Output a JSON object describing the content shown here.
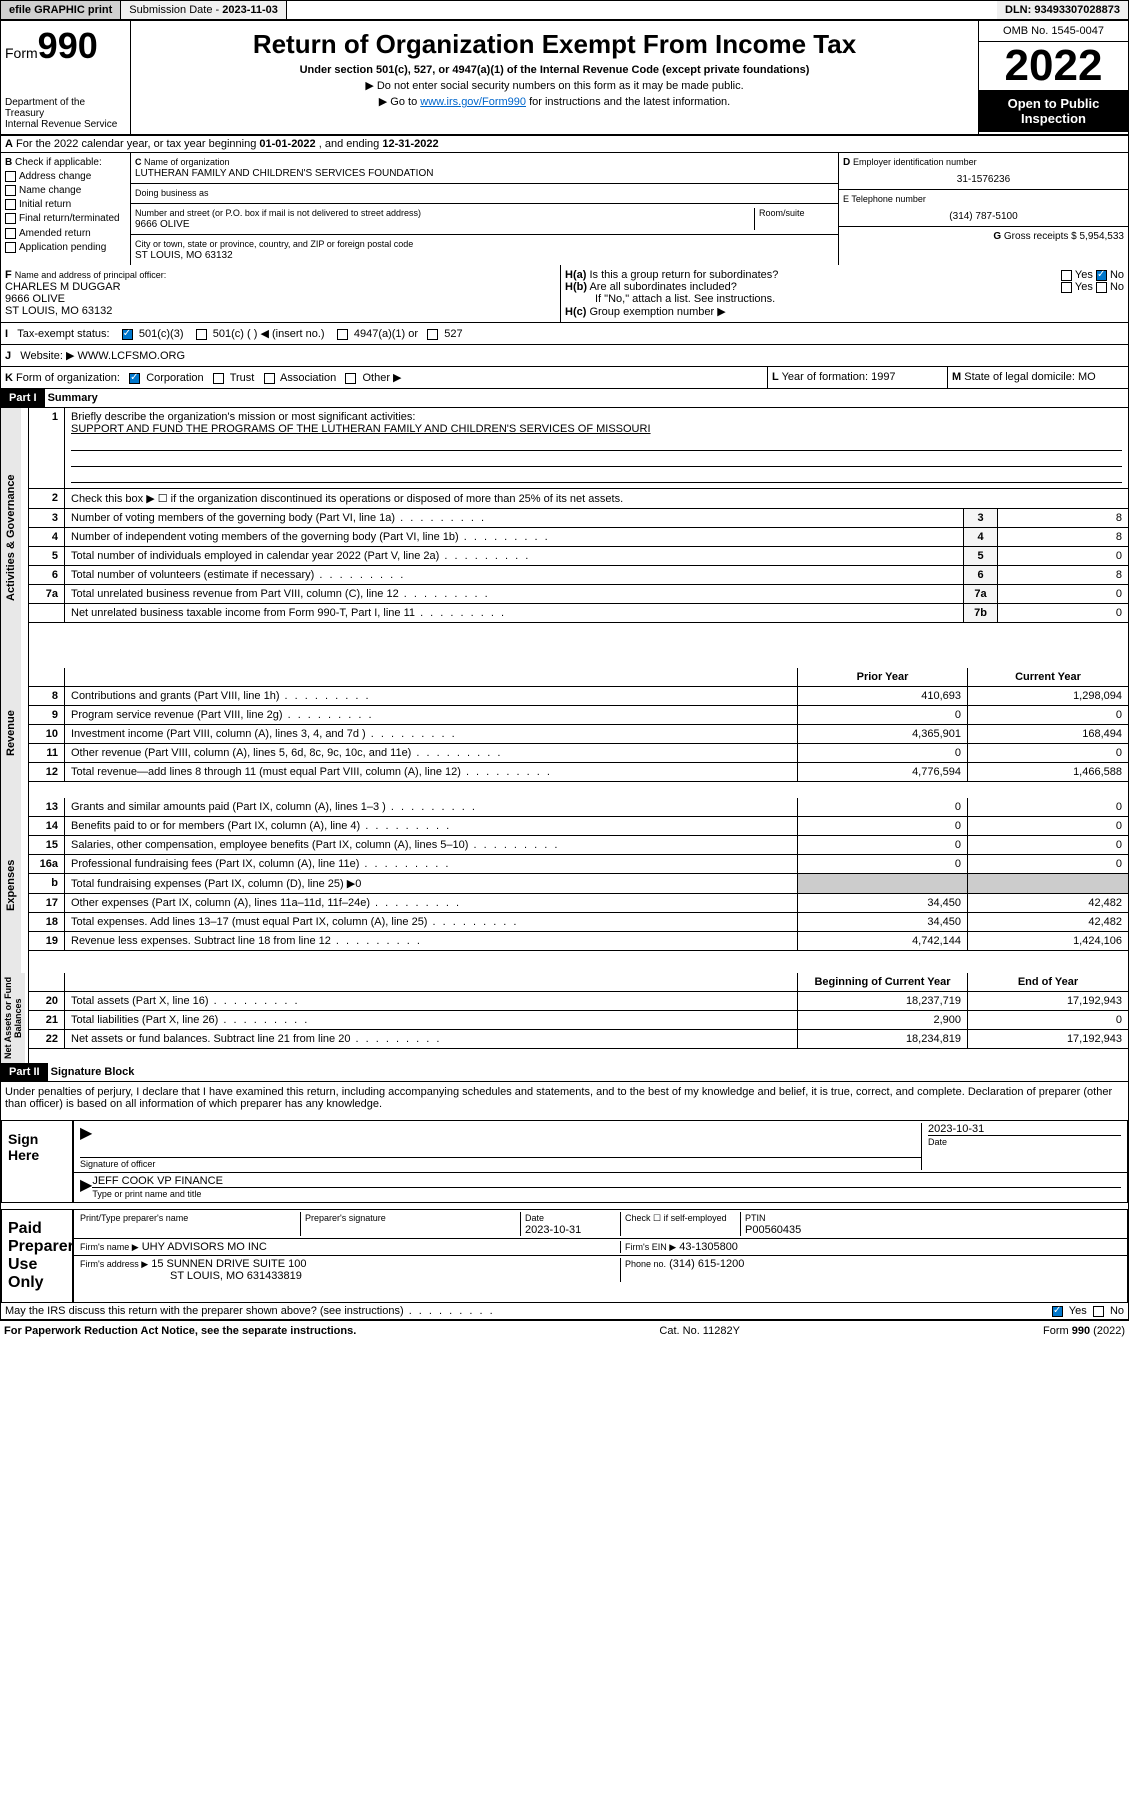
{
  "topbar": {
    "efile": "efile GRAPHIC print",
    "subdate_label": "Submission Date - ",
    "subdate": "2023-11-03",
    "dln_label": "DLN: ",
    "dln": "93493307028873"
  },
  "header": {
    "form_prefix": "Form",
    "form_no": "990",
    "title": "Return of Organization Exempt From Income Tax",
    "subtitle": "Under section 501(c), 527, or 4947(a)(1) of the Internal Revenue Code (except private foundations)",
    "note1": "▶ Do not enter social security numbers on this form as it may be made public.",
    "note2_pre": "▶ Go to ",
    "note2_link": "www.irs.gov/Form990",
    "note2_post": " for instructions and the latest information.",
    "dept": "Department of the Treasury",
    "irs": "Internal Revenue Service",
    "omb": "OMB No. 1545-0047",
    "year": "2022",
    "otp": "Open to Public Inspection"
  },
  "secA": {
    "text_pre": "For the 2022 calendar year, or tax year beginning ",
    "begin": "01-01-2022",
    "mid": " , and ending ",
    "end": "12-31-2022"
  },
  "secB": {
    "label": "Check if applicable:",
    "items": [
      "Address change",
      "Name change",
      "Initial return",
      "Final return/terminated",
      "Amended return",
      "Application pending"
    ]
  },
  "secC": {
    "name_lbl": "Name of organization",
    "name": "LUTHERAN FAMILY AND CHILDREN'S SERVICES FOUNDATION",
    "dba_lbl": "Doing business as",
    "addr_lbl": "Number and street (or P.O. box if mail is not delivered to street address)",
    "room_lbl": "Room/suite",
    "addr": "9666 OLIVE",
    "city_lbl": "City or town, state or province, country, and ZIP or foreign postal code",
    "city": "ST LOUIS, MO  63132"
  },
  "secD": {
    "lbl": "Employer identification number",
    "val": "31-1576236"
  },
  "secE": {
    "lbl": "E Telephone number",
    "val": "(314) 787-5100"
  },
  "secG": {
    "lbl": "Gross receipts $",
    "val": "5,954,533"
  },
  "secF": {
    "lbl": "Name and address of principal officer:",
    "name": "CHARLES M DUGGAR",
    "addr": "9666 OLIVE",
    "city": "ST LOUIS, MO  63132"
  },
  "secH": {
    "a": "Is this a group return for subordinates?",
    "b": "Are all subordinates included?",
    "note": "If \"No,\" attach a list. See instructions.",
    "c": "Group exemption number ▶",
    "yes": "Yes",
    "no": "No"
  },
  "secI": {
    "lbl": "Tax-exempt status:",
    "o1": "501(c)(3)",
    "o2": "501(c) (  ) ◀ (insert no.)",
    "o3": "4947(a)(1) or",
    "o4": "527"
  },
  "secJ": {
    "lbl": "Website: ▶",
    "val": "WWW.LCFSMO.ORG"
  },
  "secK": {
    "lbl": "Form of organization:",
    "o1": "Corporation",
    "o2": "Trust",
    "o3": "Association",
    "o4": "Other ▶"
  },
  "secL": {
    "lbl": "Year of formation:",
    "val": "1997"
  },
  "secM": {
    "lbl": "State of legal domicile:",
    "val": "MO"
  },
  "part1": {
    "hdr": "Part I",
    "title": "Summary",
    "sections": {
      "gov": "Activities & Governance",
      "rev": "Revenue",
      "exp": "Expenses",
      "net": "Net Assets or Fund Balances"
    },
    "l1": "Briefly describe the organization's mission or most significant activities:",
    "mission": "SUPPORT AND FUND THE PROGRAMS OF THE LUTHERAN FAMILY AND CHILDREN'S SERVICES OF MISSOURI",
    "l2": "Check this box ▶ ☐  if the organization discontinued its operations or disposed of more than 25% of its net assets.",
    "lines_gov": [
      {
        "n": "3",
        "d": "Number of voting members of the governing body (Part VI, line 1a)",
        "b": "3",
        "v": "8"
      },
      {
        "n": "4",
        "d": "Number of independent voting members of the governing body (Part VI, line 1b)",
        "b": "4",
        "v": "8"
      },
      {
        "n": "5",
        "d": "Total number of individuals employed in calendar year 2022 (Part V, line 2a)",
        "b": "5",
        "v": "0"
      },
      {
        "n": "6",
        "d": "Total number of volunteers (estimate if necessary)",
        "b": "6",
        "v": "8"
      },
      {
        "n": "7a",
        "d": "Total unrelated business revenue from Part VIII, column (C), line 12",
        "b": "7a",
        "v": "0"
      },
      {
        "n": "",
        "d": "Net unrelated business taxable income from Form 990-T, Part I, line 11",
        "b": "7b",
        "v": "0"
      }
    ],
    "col_prior": "Prior Year",
    "col_current": "Current Year",
    "lines_rev": [
      {
        "n": "8",
        "d": "Contributions and grants (Part VIII, line 1h)",
        "p": "410,693",
        "c": "1,298,094"
      },
      {
        "n": "9",
        "d": "Program service revenue (Part VIII, line 2g)",
        "p": "0",
        "c": "0"
      },
      {
        "n": "10",
        "d": "Investment income (Part VIII, column (A), lines 3, 4, and 7d )",
        "p": "4,365,901",
        "c": "168,494"
      },
      {
        "n": "11",
        "d": "Other revenue (Part VIII, column (A), lines 5, 6d, 8c, 9c, 10c, and 11e)",
        "p": "0",
        "c": "0"
      },
      {
        "n": "12",
        "d": "Total revenue—add lines 8 through 11 (must equal Part VIII, column (A), line 12)",
        "p": "4,776,594",
        "c": "1,466,588"
      }
    ],
    "lines_exp": [
      {
        "n": "13",
        "d": "Grants and similar amounts paid (Part IX, column (A), lines 1–3 )",
        "p": "0",
        "c": "0"
      },
      {
        "n": "14",
        "d": "Benefits paid to or for members (Part IX, column (A), line 4)",
        "p": "0",
        "c": "0"
      },
      {
        "n": "15",
        "d": "Salaries, other compensation, employee benefits (Part IX, column (A), lines 5–10)",
        "p": "0",
        "c": "0"
      },
      {
        "n": "16a",
        "d": "Professional fundraising fees (Part IX, column (A), line 11e)",
        "p": "0",
        "c": "0"
      },
      {
        "n": "b",
        "d": "Total fundraising expenses (Part IX, column (D), line 25) ▶0",
        "p": "",
        "c": ""
      },
      {
        "n": "17",
        "d": "Other expenses (Part IX, column (A), lines 11a–11d, 11f–24e)",
        "p": "34,450",
        "c": "42,482"
      },
      {
        "n": "18",
        "d": "Total expenses. Add lines 13–17 (must equal Part IX, column (A), line 25)",
        "p": "34,450",
        "c": "42,482"
      },
      {
        "n": "19",
        "d": "Revenue less expenses. Subtract line 18 from line 12",
        "p": "4,742,144",
        "c": "1,424,106"
      }
    ],
    "col_begin": "Beginning of Current Year",
    "col_end": "End of Year",
    "lines_net": [
      {
        "n": "20",
        "d": "Total assets (Part X, line 16)",
        "p": "18,237,719",
        "c": "17,192,943"
      },
      {
        "n": "21",
        "d": "Total liabilities (Part X, line 26)",
        "p": "2,900",
        "c": "0"
      },
      {
        "n": "22",
        "d": "Net assets or fund balances. Subtract line 21 from line 20",
        "p": "18,234,819",
        "c": "17,192,943"
      }
    ]
  },
  "part2": {
    "hdr": "Part II",
    "title": "Signature Block",
    "decl": "Under penalties of perjury, I declare that I have examined this return, including accompanying schedules and statements, and to the best of my knowledge and belief, it is true, correct, and complete. Declaration of preparer (other than officer) is based on all information of which preparer has any knowledge."
  },
  "sign": {
    "here": "Sign Here",
    "sig_lbl": "Signature of officer",
    "date_lbl": "Date",
    "date": "2023-10-31",
    "name": "JEFF COOK  VP FINANCE",
    "name_lbl": "Type or print name and title"
  },
  "paid": {
    "title": "Paid Preparer Use Only",
    "pt_lbl": "Print/Type preparer's name",
    "sig_lbl": "Preparer's signature",
    "date_lbl": "Date",
    "date": "2023-10-31",
    "check_lbl": "Check ☐ if self-employed",
    "ptin_lbl": "PTIN",
    "ptin": "P00560435",
    "firm_lbl": "Firm's name   ▶",
    "firm": "UHY ADVISORS MO INC",
    "ein_lbl": "Firm's EIN ▶",
    "ein": "43-1305800",
    "addr_lbl": "Firm's address ▶",
    "addr": "15 SUNNEN DRIVE SUITE 100",
    "addr2": "ST LOUIS, MO  631433819",
    "phone_lbl": "Phone no.",
    "phone": "(314) 615-1200"
  },
  "discuss": {
    "q": "May the IRS discuss this return with the preparer shown above? (see instructions)",
    "yes": "Yes",
    "no": "No"
  },
  "footer": {
    "pra": "For Paperwork Reduction Act Notice, see the separate instructions.",
    "cat": "Cat. No. 11282Y",
    "form": "Form 990 (2022)"
  },
  "letters": {
    "A": "A",
    "B": "B",
    "C": "C",
    "D": "D",
    "F": "F",
    "G": "G",
    "H": "H",
    "I": "I",
    "J": "J",
    "K": "K",
    "L": "L",
    "M": "M"
  }
}
